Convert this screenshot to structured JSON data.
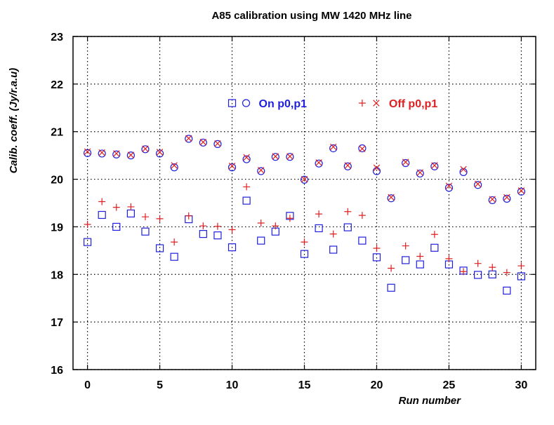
{
  "chart_data": {
    "type": "scatter",
    "title": "A85 calibration using MW 1420 MHz line",
    "xlabel": "Run number",
    "ylabel": "Calib. coeff. (Jy/r.a.u)",
    "xlim": [
      -1,
      31
    ],
    "ylim": [
      16,
      23
    ],
    "xticks": [
      0,
      5,
      10,
      15,
      20,
      25,
      30
    ],
    "yticks": [
      16,
      17,
      18,
      19,
      20,
      21,
      22,
      23
    ],
    "grid": true,
    "legend_position": "top-right",
    "legend": [
      {
        "label": "On p0,p1",
        "markers": [
          "square",
          "circle"
        ],
        "color": "#1f1fdd"
      },
      {
        "label": "Off p0,p1",
        "markers": [
          "plus",
          "cross"
        ],
        "color": "#e02020"
      }
    ],
    "series": [
      {
        "name": "On p0",
        "marker": "square",
        "color": "#1f1fdd",
        "x": [
          0,
          1,
          2,
          3,
          4,
          5,
          6,
          7,
          8,
          9,
          10,
          11,
          12,
          13,
          14,
          15,
          16,
          17,
          18,
          19,
          20,
          21,
          22,
          23,
          24,
          25,
          26,
          27,
          28,
          29,
          30
        ],
        "y": [
          18.68,
          19.25,
          19.0,
          19.28,
          18.9,
          18.55,
          18.37,
          19.16,
          18.85,
          18.82,
          18.57,
          19.55,
          18.71,
          18.9,
          19.23,
          18.43,
          18.97,
          18.52,
          18.99,
          18.71,
          18.36,
          17.72,
          18.3,
          18.21,
          18.56,
          18.21,
          18.08,
          17.99,
          18.0,
          17.66,
          17.96
        ]
      },
      {
        "name": "On p1",
        "marker": "circle",
        "color": "#1f1fdd",
        "x": [
          0,
          1,
          2,
          3,
          4,
          5,
          6,
          7,
          8,
          9,
          10,
          11,
          12,
          13,
          14,
          15,
          16,
          17,
          18,
          19,
          20,
          21,
          22,
          23,
          24,
          25,
          26,
          27,
          28,
          29,
          30
        ],
        "y": [
          20.55,
          20.54,
          20.52,
          20.5,
          20.63,
          20.54,
          20.25,
          20.85,
          20.77,
          20.74,
          20.25,
          20.42,
          20.17,
          20.47,
          20.47,
          19.99,
          20.33,
          20.65,
          20.27,
          20.65,
          20.17,
          19.6,
          20.34,
          20.12,
          20.27,
          19.82,
          20.15,
          19.88,
          19.56,
          19.59,
          19.74
        ]
      },
      {
        "name": "Off p0",
        "marker": "plus",
        "color": "#e02020",
        "x": [
          0,
          1,
          2,
          3,
          4,
          5,
          6,
          7,
          8,
          9,
          10,
          11,
          12,
          13,
          14,
          15,
          16,
          17,
          18,
          19,
          20,
          21,
          22,
          23,
          24,
          25,
          26,
          27,
          28,
          29,
          30
        ],
        "y": [
          19.05,
          19.53,
          19.41,
          19.42,
          19.21,
          19.17,
          18.68,
          19.23,
          19.02,
          19.01,
          18.94,
          19.84,
          19.08,
          19.02,
          19.18,
          18.68,
          19.27,
          18.85,
          19.32,
          19.24,
          18.55,
          18.13,
          18.6,
          18.38,
          18.84,
          18.33,
          18.06,
          18.23,
          18.15,
          18.04,
          18.18
        ]
      },
      {
        "name": "Off p1",
        "marker": "cross",
        "color": "#e02020",
        "x": [
          0,
          1,
          2,
          3,
          4,
          5,
          6,
          7,
          8,
          9,
          10,
          11,
          12,
          13,
          14,
          15,
          16,
          17,
          18,
          19,
          20,
          21,
          22,
          23,
          24,
          25,
          26,
          27,
          28,
          29,
          30
        ],
        "y": [
          20.58,
          20.56,
          20.54,
          20.51,
          20.64,
          20.57,
          20.29,
          20.86,
          20.78,
          20.75,
          20.28,
          20.46,
          20.19,
          20.48,
          20.48,
          20.0,
          20.35,
          20.68,
          20.29,
          20.64,
          20.24,
          19.62,
          20.36,
          20.14,
          20.29,
          19.86,
          20.21,
          19.9,
          19.58,
          19.62,
          19.76
        ]
      }
    ]
  }
}
